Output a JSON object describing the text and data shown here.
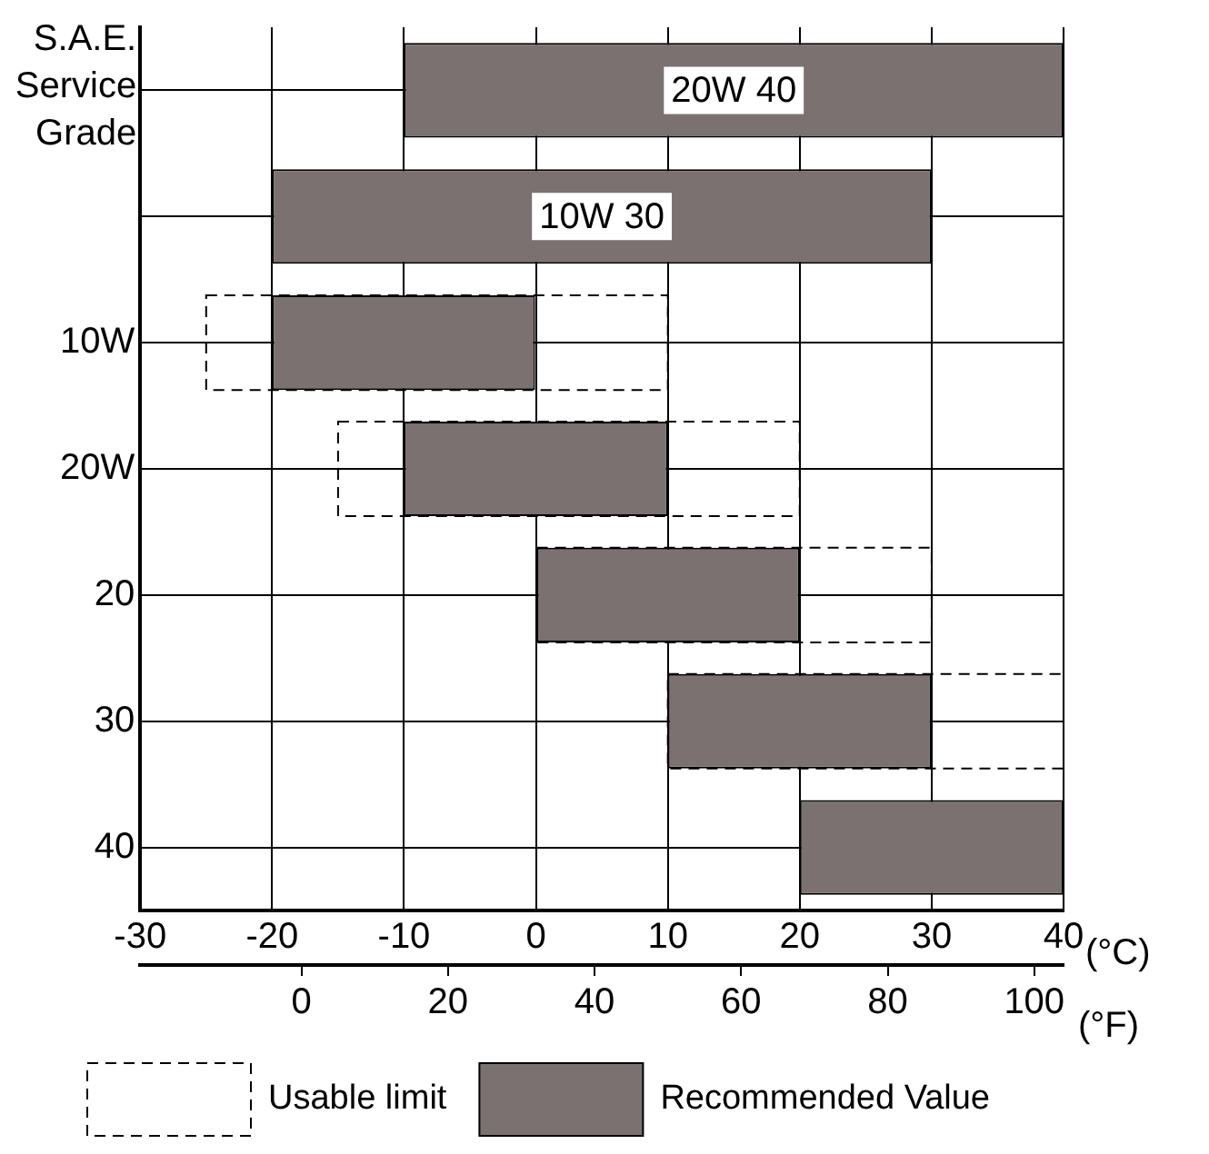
{
  "chart_data": {
    "type": "bar",
    "orientation": "horizontal",
    "ylabel": "S.A.E.\nService\nGrade",
    "xlabel": "(°C)",
    "x2label": "(°F)",
    "categories": [
      "20W 40",
      "10W 30",
      "10W",
      "20W",
      "20",
      "30",
      "40"
    ],
    "series": [
      {
        "name": "Usable limit",
        "color": "#000000",
        "line_style": "dashed",
        "base": [
          null,
          null,
          -25,
          -15,
          0,
          10,
          null
        ],
        "values": [
          null,
          null,
          35,
          35,
          30,
          30,
          null
        ]
      },
      {
        "name": "Recommended Value",
        "color": "#7a7170",
        "base": [
          -10,
          -20,
          -20,
          -10,
          0,
          10,
          20
        ],
        "values": [
          50,
          50,
          20,
          20,
          20,
          20,
          20
        ]
      }
    ],
    "xlim": [
      -30,
      40
    ],
    "xticks": [
      -30,
      -20,
      -10,
      0,
      10,
      20,
      30,
      40
    ],
    "x2lim": [
      -22,
      104
    ],
    "x2ticks": [
      0,
      20,
      40,
      60,
      80,
      100
    ],
    "grid": true,
    "legend": "bottom"
  }
}
